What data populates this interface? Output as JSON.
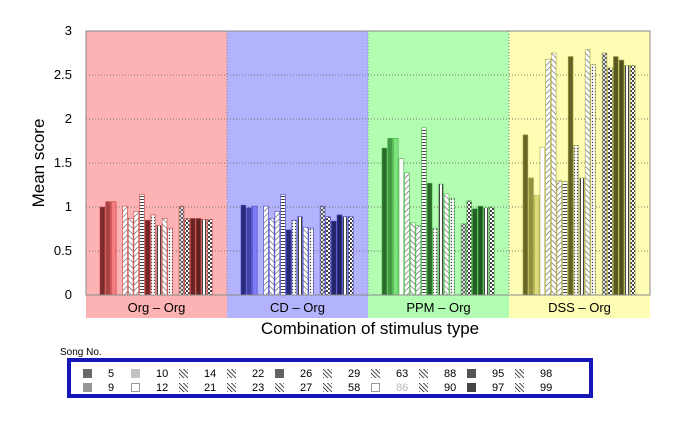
{
  "chart_data": {
    "type": "bar",
    "title": "",
    "xlabel": "Combination of stimulus type",
    "ylabel": "Mean score",
    "ylim": [
      0,
      3
    ],
    "yticks": [
      "0",
      "0.5",
      "1",
      "1.5",
      "2",
      "2.5",
      "3"
    ],
    "grid": "horizontal dotted",
    "categories": [
      "Org – Org",
      "CD – Org",
      "PPM – Org",
      "DSS – Org"
    ],
    "group_colors": [
      "#fdb3b3",
      "#b3b3fd",
      "#b3fdb3",
      "#fdfdb3"
    ],
    "series_colors": [
      "#c44444",
      "#4444c4",
      "#44b044",
      "#a6a640"
    ],
    "legend_title": "Song No.",
    "series": [
      {
        "name": "5",
        "values": [
          1.0,
          1.02,
          1.67,
          1.82
        ]
      },
      {
        "name": "9",
        "values": [
          1.06,
          0.99,
          1.78,
          1.33
        ]
      },
      {
        "name": "10",
        "values": [
          1.06,
          1.01,
          1.78,
          1.13
        ]
      },
      {
        "name": "12",
        "values": [
          0.0,
          0.0,
          1.55,
          1.68
        ]
      },
      {
        "name": "14",
        "values": [
          1.01,
          1.01,
          1.39,
          2.68
        ]
      },
      {
        "name": "21",
        "values": [
          0.87,
          0.87,
          0.82,
          2.75
        ]
      },
      {
        "name": "22",
        "values": [
          0.95,
          0.95,
          0.79,
          1.3
        ]
      },
      {
        "name": "23",
        "values": [
          1.14,
          1.14,
          1.9,
          1.29
        ]
      },
      {
        "name": "26",
        "values": [
          0.85,
          0.74,
          1.27,
          2.71
        ]
      },
      {
        "name": "27",
        "values": [
          0.91,
          0.85,
          0.76,
          1.7
        ]
      },
      {
        "name": "29",
        "values": [
          0.79,
          0.89,
          1.26,
          1.33
        ]
      },
      {
        "name": "58",
        "values": [
          0.87,
          0.77,
          1.15,
          2.79
        ]
      },
      {
        "name": "63",
        "values": [
          0.76,
          0.76,
          1.1,
          2.62
        ]
      },
      {
        "name": "86",
        "values": [
          0.0,
          0.0,
          0.0,
          0.0
        ]
      },
      {
        "name": "88",
        "values": [
          1.01,
          1.01,
          0.81,
          2.75
        ]
      },
      {
        "name": "90",
        "values": [
          0.87,
          0.89,
          1.07,
          2.58
        ]
      },
      {
        "name": "95",
        "values": [
          0.87,
          0.84,
          0.98,
          2.71
        ]
      },
      {
        "name": "97",
        "values": [
          0.87,
          0.91,
          1.01,
          2.67
        ]
      },
      {
        "name": "98",
        "values": [
          0.86,
          0.89,
          0.99,
          2.61
        ]
      },
      {
        "name": "99",
        "values": [
          0.86,
          0.89,
          1.0,
          2.61
        ]
      }
    ]
  }
}
